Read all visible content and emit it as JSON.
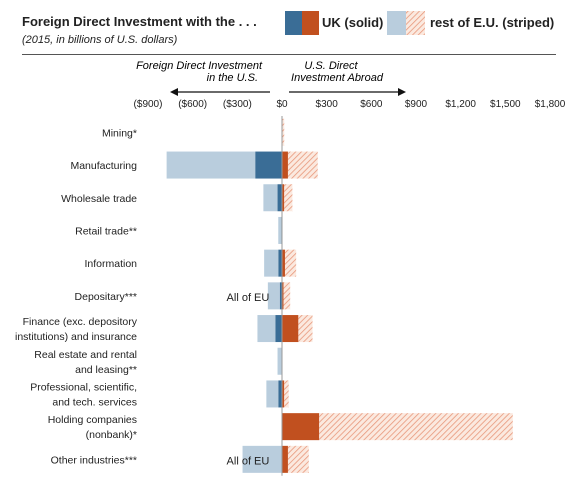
{
  "header": {
    "title": "Foreign Direct Investment with the . . .",
    "subtitle": "(2015, in billions of U.S. dollars)"
  },
  "legend": {
    "uk_label": "UK (solid)",
    "eu_label": "rest of E.U. (striped)"
  },
  "direction": {
    "left_label_line1": "Foreign Direct Investment",
    "left_label_line2": "in the U.S.",
    "right_label_line1": "U.S. Direct",
    "right_label_line2": "Investment Abroad"
  },
  "colors": {
    "uk_inward": "#3a6d96",
    "eu_inward": "#b9cddd",
    "uk_outward": "#c1501f",
    "eu_outward_stripe": "#e8977a",
    "eu_outward_bg": "#fbe9df"
  },
  "chart_data": {
    "type": "bar",
    "orientation": "horizontal",
    "stacked": true,
    "xlim": [
      -900,
      1800
    ],
    "tick_values": [
      -900,
      -600,
      -300,
      0,
      300,
      600,
      900,
      1200,
      1500,
      1800
    ],
    "tick_labels": [
      "($900)",
      "($600)",
      "($300)",
      "$0",
      "$300",
      "$600",
      "$900",
      "$1,200",
      "$1,500",
      "$1,800"
    ],
    "categories": [
      [
        "Mining*"
      ],
      [
        "Manufacturing"
      ],
      [
        "Wholesale trade"
      ],
      [
        "Retail trade**"
      ],
      [
        "Information"
      ],
      [
        "Depositary***"
      ],
      [
        "Finance (exc. depository",
        "institutions) and insurance"
      ],
      [
        "Real estate and rental",
        "and leasing**"
      ],
      [
        "Professional, scientific,",
        "and tech. services"
      ],
      [
        "Holding companies",
        "(nonbank)*"
      ],
      [
        "Other industries***"
      ]
    ],
    "series": [
      {
        "name": "UK (solid)",
        "direction": "in the U.S.",
        "values": [
          0,
          -180,
          -30,
          -5,
          -25,
          -15,
          -45,
          0,
          -25,
          0,
          0
        ]
      },
      {
        "name": "rest of E.U. (striped)",
        "direction": "in the U.S.",
        "values": [
          0,
          -595,
          -95,
          -20,
          -95,
          -80,
          -120,
          -30,
          -80,
          0,
          -265
        ]
      },
      {
        "name": "UK (solid)",
        "direction": "abroad",
        "values": [
          0,
          40,
          15,
          0,
          20,
          10,
          110,
          0,
          15,
          250,
          40
        ]
      },
      {
        "name": "rest of E.U. (striped)",
        "direction": "abroad",
        "values": [
          15,
          200,
          55,
          0,
          75,
          45,
          95,
          0,
          30,
          1300,
          140
        ]
      }
    ],
    "annotations": [
      {
        "category_index": 5,
        "text": "All of EU"
      },
      {
        "category_index": 10,
        "text": "All of EU"
      }
    ]
  }
}
